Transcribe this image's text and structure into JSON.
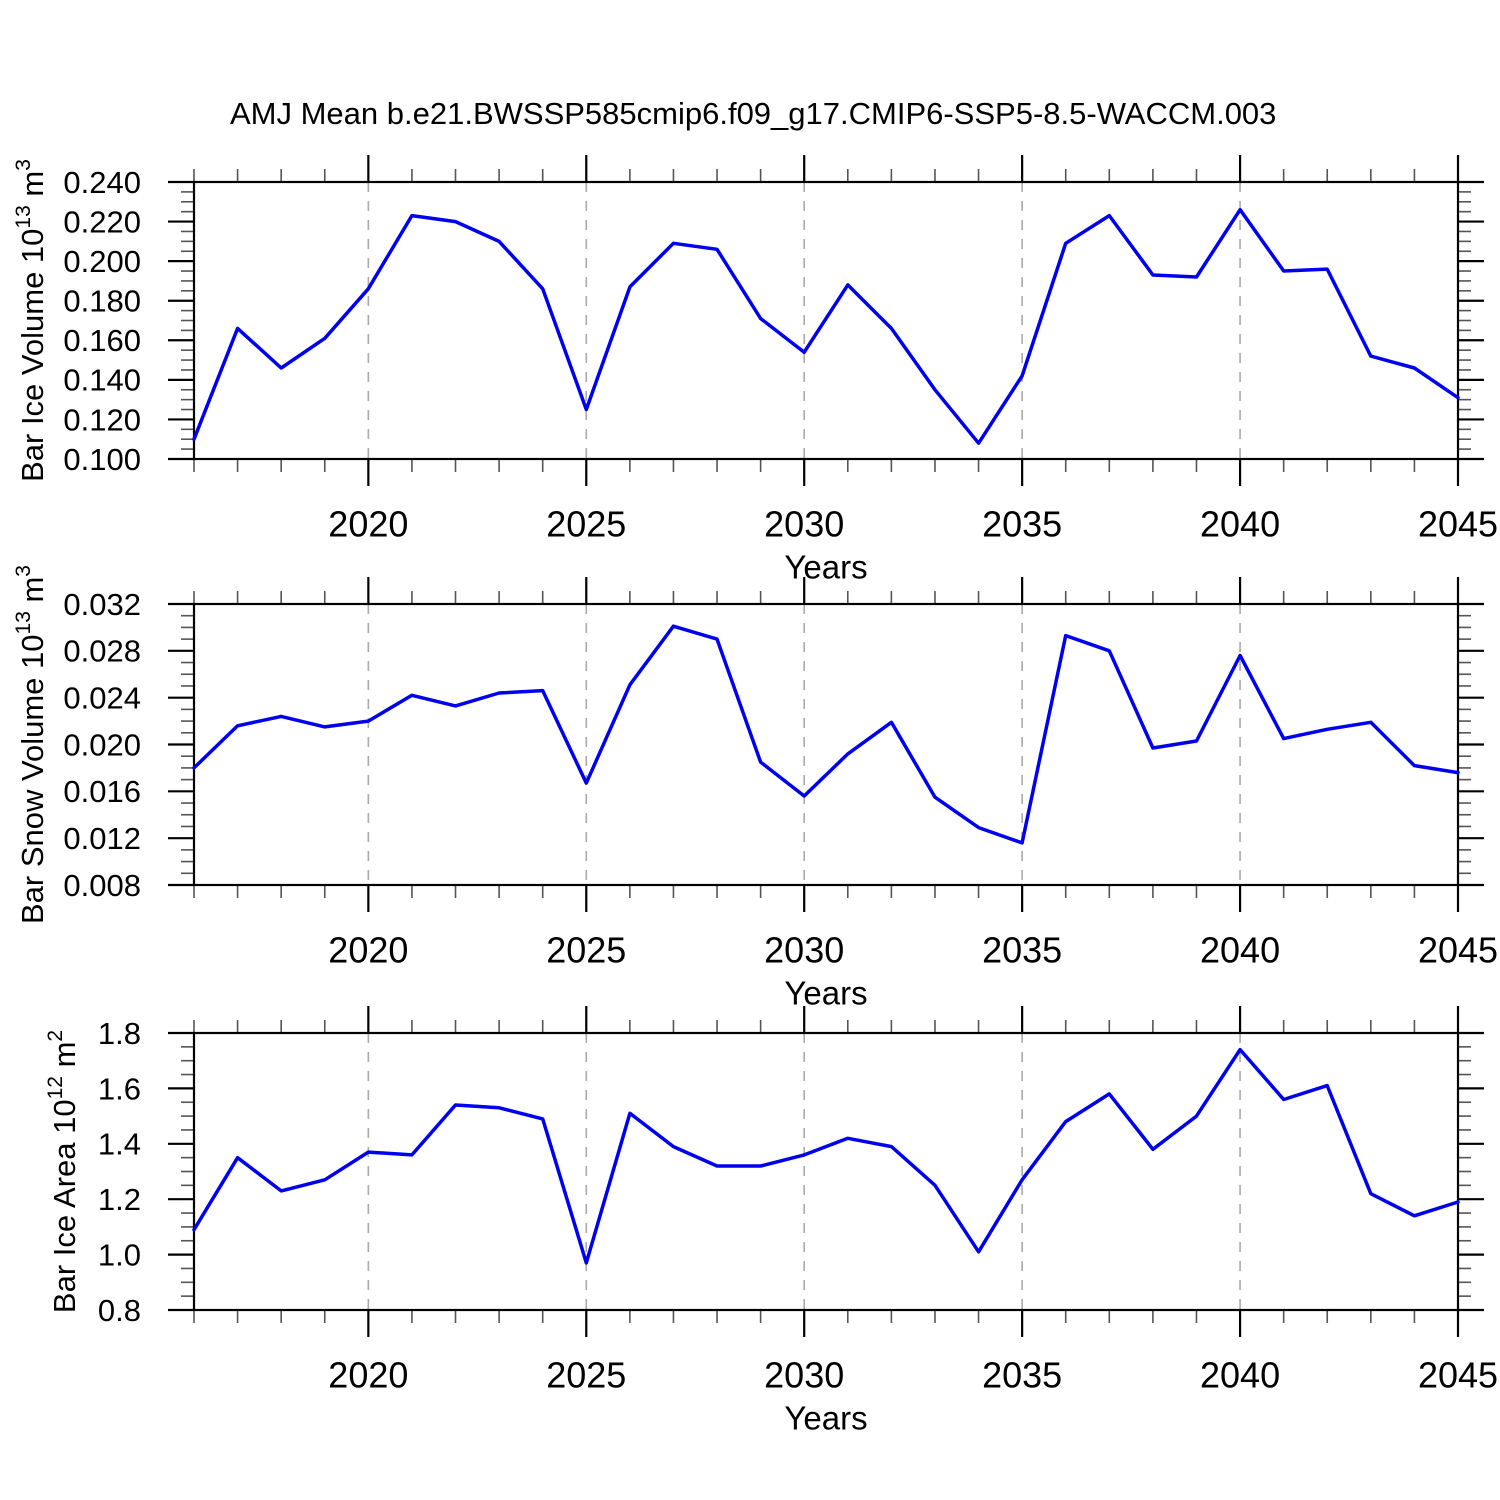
{
  "title": "AMJ Mean b.e21.BWSSP585cmip6.f09_g17.CMIP6-SSP5-8.5-WACCM.003",
  "line_color": "#0000f0",
  "grid_color": "#aaaaaa",
  "chart_data": [
    {
      "type": "line",
      "name": "bar-ice-volume",
      "title": "",
      "xlabel": "Years",
      "ylabel_parts": [
        {
          "t": "Bar Ice Volume 10",
          "sup": false
        },
        {
          "t": "13",
          "sup": true
        },
        {
          "t": " m",
          "sup": false
        },
        {
          "t": "3",
          "sup": true
        }
      ],
      "xlim": [
        2016,
        2045
      ],
      "ylim": [
        0.1,
        0.24
      ],
      "xticks_labeled": [
        "2020",
        "2025",
        "2030",
        "2035",
        "2040",
        "2045"
      ],
      "xminor_step": 1,
      "gridlines_x": [
        2020,
        2025,
        2030,
        2035,
        2040
      ],
      "yticks": [
        "0.240",
        "0.220",
        "0.200",
        "0.180",
        "0.160",
        "0.140",
        "0.120",
        "0.100"
      ],
      "yminor_step": 0.005,
      "grid": "vertical-dashed",
      "legend": "none",
      "x": [
        2016,
        2017,
        2018,
        2019,
        2020,
        2021,
        2022,
        2023,
        2024,
        2025,
        2026,
        2027,
        2028,
        2029,
        2030,
        2031,
        2032,
        2033,
        2034,
        2035,
        2036,
        2037,
        2038,
        2039,
        2040,
        2041,
        2042,
        2043,
        2044,
        2045
      ],
      "values": [
        0.11,
        0.166,
        0.146,
        0.161,
        0.186,
        0.223,
        0.22,
        0.21,
        0.186,
        0.125,
        0.187,
        0.209,
        0.206,
        0.171,
        0.154,
        0.188,
        0.166,
        0.135,
        0.108,
        0.142,
        0.209,
        0.223,
        0.193,
        0.192,
        0.226,
        0.195,
        0.196,
        0.152,
        0.146,
        0.131
      ]
    },
    {
      "type": "line",
      "name": "bar-snow-volume",
      "title": "",
      "xlabel": "Years",
      "ylabel_parts": [
        {
          "t": "Bar Snow Volume 10",
          "sup": false
        },
        {
          "t": "13",
          "sup": true
        },
        {
          "t": " m",
          "sup": false
        },
        {
          "t": "3",
          "sup": true
        }
      ],
      "xlim": [
        2016,
        2045
      ],
      "ylim": [
        0.008,
        0.032
      ],
      "xticks_labeled": [
        "2020",
        "2025",
        "2030",
        "2035",
        "2040",
        "2045"
      ],
      "xminor_step": 1,
      "gridlines_x": [
        2020,
        2025,
        2030,
        2035,
        2040
      ],
      "yticks": [
        "0.032",
        "0.028",
        "0.024",
        "0.020",
        "0.016",
        "0.012",
        "0.008"
      ],
      "yminor_step": 0.001,
      "grid": "vertical-dashed",
      "legend": "none",
      "x": [
        2016,
        2017,
        2018,
        2019,
        2020,
        2021,
        2022,
        2023,
        2024,
        2025,
        2026,
        2027,
        2028,
        2029,
        2030,
        2031,
        2032,
        2033,
        2034,
        2035,
        2036,
        2037,
        2038,
        2039,
        2040,
        2041,
        2042,
        2043,
        2044,
        2045
      ],
      "values": [
        0.018,
        0.0216,
        0.0224,
        0.0215,
        0.022,
        0.0242,
        0.0233,
        0.0244,
        0.0246,
        0.0167,
        0.0251,
        0.0301,
        0.029,
        0.0185,
        0.0156,
        0.0192,
        0.0219,
        0.0155,
        0.0129,
        0.0116,
        0.0293,
        0.028,
        0.0197,
        0.0203,
        0.0276,
        0.0205,
        0.0213,
        0.0219,
        0.0182,
        0.0176
      ]
    },
    {
      "type": "line",
      "name": "bar-ice-area",
      "title": "",
      "xlabel": "Years",
      "ylabel_parts": [
        {
          "t": "Bar Ice Area 10",
          "sup": false
        },
        {
          "t": "12",
          "sup": true
        },
        {
          "t": " m",
          "sup": false
        },
        {
          "t": "2",
          "sup": true
        }
      ],
      "xlim": [
        2016,
        2045
      ],
      "ylim": [
        0.8,
        1.8
      ],
      "xticks_labeled": [
        "2020",
        "2025",
        "2030",
        "2035",
        "2040",
        "2045"
      ],
      "xminor_step": 1,
      "gridlines_x": [
        2020,
        2025,
        2030,
        2035,
        2040
      ],
      "yticks": [
        "1.8",
        "1.6",
        "1.4",
        "1.2",
        "1.0",
        "0.8"
      ],
      "yminor_step": 0.05,
      "grid": "vertical-dashed",
      "legend": "none",
      "x": [
        2016,
        2017,
        2018,
        2019,
        2020,
        2021,
        2022,
        2023,
        2024,
        2025,
        2026,
        2027,
        2028,
        2029,
        2030,
        2031,
        2032,
        2033,
        2034,
        2035,
        2036,
        2037,
        2038,
        2039,
        2040,
        2041,
        2042,
        2043,
        2044,
        2045
      ],
      "values": [
        1.09,
        1.35,
        1.23,
        1.27,
        1.37,
        1.36,
        1.54,
        1.53,
        1.49,
        0.97,
        1.51,
        1.39,
        1.32,
        1.32,
        1.36,
        1.42,
        1.39,
        1.25,
        1.01,
        1.27,
        1.48,
        1.58,
        1.38,
        1.5,
        1.74,
        1.56,
        1.61,
        1.22,
        1.14,
        1.19
      ]
    }
  ]
}
